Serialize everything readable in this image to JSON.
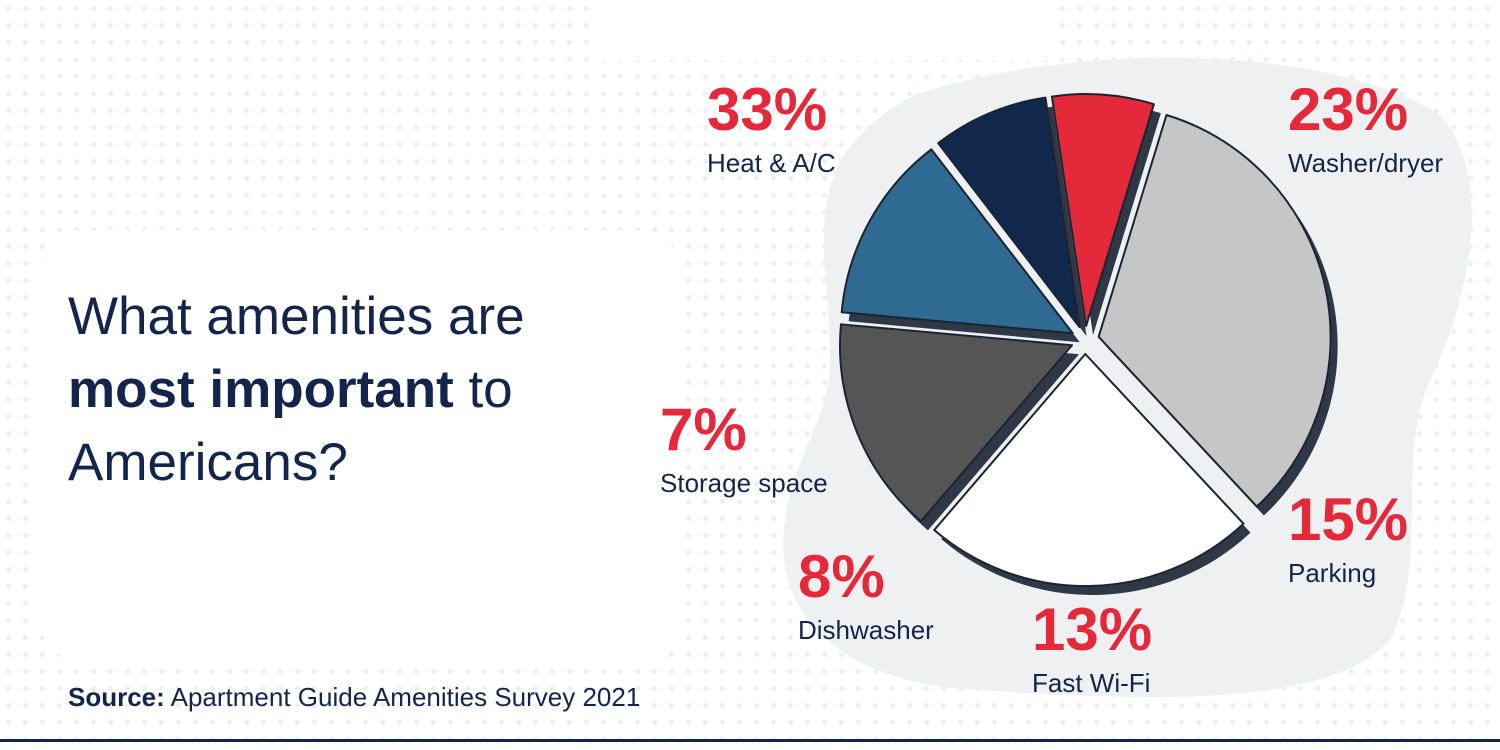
{
  "question": {
    "line1": "What amenities are",
    "line2_bold": "most important",
    "line2_rest": " to",
    "line3": "Americans?"
  },
  "source": {
    "label": "Source:",
    "text": " Apartment Guide Amenities Survey 2021"
  },
  "colors": {
    "accent_red": "#e4293b",
    "navy": "#13254a",
    "backdrop": "#eef0f2"
  },
  "chart_data": {
    "type": "pie",
    "title": "",
    "unit": "%",
    "slices": [
      {
        "label": "Heat & A/C",
        "value": 33,
        "value_label": "33%",
        "color": "#c6c6c6"
      },
      {
        "label": "Washer/dryer",
        "value": 23,
        "value_label": "23%",
        "color": "#ffffff"
      },
      {
        "label": "Parking",
        "value": 15,
        "value_label": "15%",
        "color": "#555555"
      },
      {
        "label": "Fast Wi-Fi",
        "value": 13,
        "value_label": "13%",
        "color": "#2e6a91"
      },
      {
        "label": "Dishwasher",
        "value": 8,
        "value_label": "8%",
        "color": "#11284c"
      },
      {
        "label": "Storage space",
        "value": 7,
        "value_label": "7%",
        "color": "#e4293b"
      }
    ]
  }
}
